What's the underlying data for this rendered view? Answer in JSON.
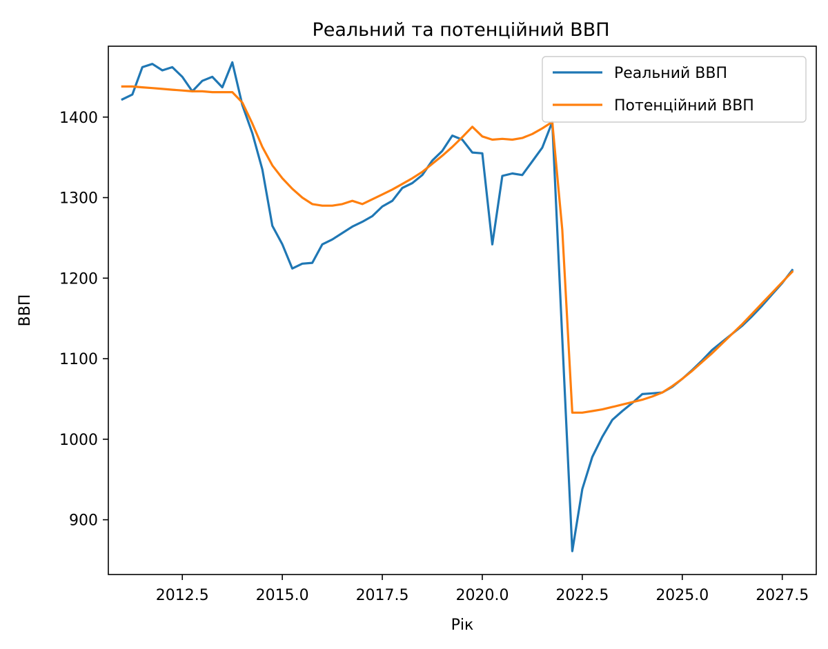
{
  "chart_data": {
    "type": "line",
    "title": "Реальний та потенційний ВВП",
    "xlabel": "Рік",
    "ylabel": "ВВП",
    "xlim": [
      2010.65,
      2028.35
    ],
    "ylim": [
      832,
      1488
    ],
    "x_ticks": [
      2012.5,
      2015.0,
      2017.5,
      2020.0,
      2022.5,
      2025.0,
      2027.5
    ],
    "x_tick_labels": [
      "2012.5",
      "2015.0",
      "2017.5",
      "2020.0",
      "2022.5",
      "2025.0",
      "2027.5"
    ],
    "y_ticks": [
      900,
      1000,
      1100,
      1200,
      1300,
      1400
    ],
    "y_tick_labels": [
      "900",
      "1000",
      "1100",
      "1200",
      "1300",
      "1400"
    ],
    "grid": false,
    "legend": "upper right",
    "x": [
      2011.0,
      2011.25,
      2011.5,
      2011.75,
      2012.0,
      2012.25,
      2012.5,
      2012.75,
      2013.0,
      2013.25,
      2013.5,
      2013.75,
      2014.0,
      2014.25,
      2014.5,
      2014.75,
      2015.0,
      2015.25,
      2015.5,
      2015.75,
      2016.0,
      2016.25,
      2016.5,
      2016.75,
      2017.0,
      2017.25,
      2017.5,
      2017.75,
      2018.0,
      2018.25,
      2018.5,
      2018.75,
      2019.0,
      2019.25,
      2019.5,
      2019.75,
      2020.0,
      2020.25,
      2020.5,
      2020.75,
      2021.0,
      2021.25,
      2021.5,
      2021.75,
      2022.0,
      2022.25,
      2022.5,
      2022.75,
      2023.0,
      2023.25,
      2023.5,
      2023.75,
      2024.0,
      2024.25,
      2024.5,
      2024.75,
      2025.0,
      2025.25,
      2025.5,
      2025.75,
      2026.0,
      2026.25,
      2026.5,
      2026.75,
      2027.0,
      2027.25,
      2027.5,
      2027.75
    ],
    "series": [
      {
        "name": "Реальний ВВП",
        "color": "#1f77b4",
        "values": [
          1422,
          1428,
          1462,
          1466,
          1458,
          1462,
          1450,
          1432,
          1445,
          1450,
          1437,
          1468,
          1415,
          1380,
          1335,
          1265,
          1242,
          1212,
          1218,
          1219,
          1242,
          1248,
          1256,
          1264,
          1270,
          1277,
          1289,
          1296,
          1312,
          1318,
          1328,
          1346,
          1358,
          1377,
          1372,
          1356,
          1355,
          1242,
          1327,
          1330,
          1328,
          1345,
          1362,
          1394,
          1125,
          861,
          938,
          978,
          1003,
          1024,
          1035,
          1045,
          1056,
          1057,
          1058,
          1065,
          1075,
          1086,
          1098,
          1111,
          1121,
          1131,
          1141,
          1153,
          1166,
          1180,
          1194,
          1210
        ]
      },
      {
        "name": "Потенційний ВВП",
        "color": "#ff7f0e",
        "values": [
          1438,
          1438,
          1437,
          1436,
          1435,
          1434,
          1433,
          1432,
          1432,
          1431,
          1431,
          1431,
          1418,
          1392,
          1363,
          1340,
          1324,
          1311,
          1300,
          1292,
          1290,
          1290,
          1292,
          1296,
          1292,
          1298,
          1304,
          1310,
          1317,
          1324,
          1332,
          1342,
          1352,
          1363,
          1375,
          1388,
          1376,
          1372,
          1373,
          1372,
          1374,
          1379,
          1386,
          1394,
          1260,
          1033,
          1033,
          1035,
          1037,
          1040,
          1043,
          1046,
          1049,
          1053,
          1058,
          1066,
          1075,
          1085,
          1096,
          1107,
          1119,
          1131,
          1143,
          1156,
          1169,
          1182,
          1195,
          1208
        ]
      }
    ]
  }
}
